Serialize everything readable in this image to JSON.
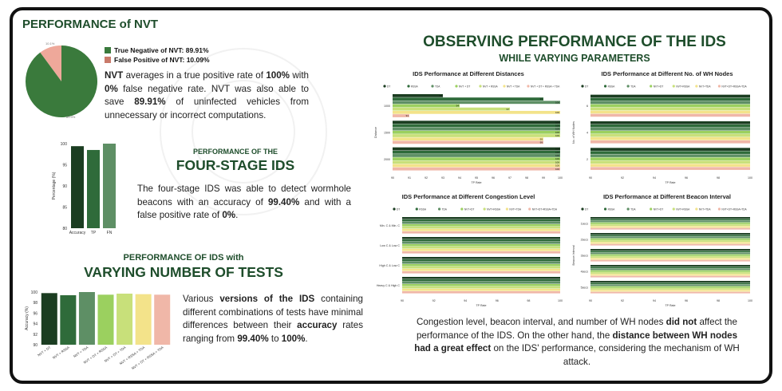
{
  "colors": {
    "dark_green": "#1e4d2b",
    "nvt": "#3a7a3c",
    "fp": "#eea89a",
    "series": [
      "#1b3d21",
      "#2f6b3a",
      "#5e8f65",
      "#9bd05f",
      "#c8e07a",
      "#f3e38a",
      "#f0b7a8"
    ]
  },
  "nvt": {
    "title": "PERFORMANCE of NVT",
    "legend": [
      {
        "label": "True  Negative of NVT:  89.91%",
        "color": "#3a7a3c"
      },
      {
        "label": "False Positive  of NVT:  10.09%",
        "color": "#c97a6a"
      }
    ],
    "pie_labels": {
      "small": "10.1%",
      "large": "89.9%"
    },
    "para": [
      {
        "t": "NVT",
        "b": true
      },
      {
        "t": " averages in a true positive rate of "
      },
      {
        "t": "100%",
        "b": true
      },
      {
        "t": " with "
      },
      {
        "t": "0%",
        "b": true
      },
      {
        "t": " false negative rate.  NVT was also able to save "
      },
      {
        "t": "89.91%",
        "b": true
      },
      {
        "t": " of uninfected vehicles from unnecessary or incorrect computations."
      }
    ]
  },
  "four_stage": {
    "subtitle": "PERFORMANCE OF THE",
    "title": "FOUR-STAGE IDS",
    "para": [
      {
        "t": "The four-stage IDS was able to detect wormhole beacons with an accuracy of "
      },
      {
        "t": "99.40%",
        "b": true
      },
      {
        "t": " and with a false positive rate of  "
      },
      {
        "t": "0%",
        "b": true
      },
      {
        "t": "."
      }
    ]
  },
  "tests": {
    "subtitle": "PERFORMANCE OF IDS with",
    "title": "VARYING NUMBER OF TESTS",
    "para": [
      {
        "t": "Various "
      },
      {
        "t": "versions of the IDS",
        "b": true
      },
      {
        "t": " containing different combinations of tests have minimal differences between their "
      },
      {
        "t": "accuracy",
        "b": true
      },
      {
        "t": " rates ranging from "
      },
      {
        "t": "99.40%",
        "b": true
      },
      {
        "t": " to "
      },
      {
        "t": "100%",
        "b": true
      },
      {
        "t": "."
      }
    ]
  },
  "right": {
    "title": "OBSERVING PERFORMANCE OF THE IDS",
    "subtitle": "WHILE VARYING PARAMETERS",
    "para": [
      {
        "t": "Congestion level, beacon interval, and number of WH nodes "
      },
      {
        "t": "did not",
        "b": true
      },
      {
        "t": " affect the performance of the IDS. On the other hand, the "
      },
      {
        "t": "distance between WH nodes had a great effect",
        "b": true
      },
      {
        "t": " on the IDS' performance, considering the mechanism of  WH attack."
      }
    ]
  },
  "chart_data": [
    {
      "type": "pie",
      "categories": [
        "True Negative of NVT",
        "False Positive of NVT"
      ],
      "values": [
        89.91,
        10.09
      ]
    },
    {
      "type": "bar",
      "categories": [
        "Accuracy",
        "TP",
        "FN"
      ],
      "values": [
        99.4,
        98.5,
        100
      ],
      "ylabel": "Percentage (%)",
      "ylim": [
        80,
        100
      ],
      "yticks": [
        "80",
        "85",
        "90",
        "95",
        "100"
      ]
    },
    {
      "type": "bar",
      "categories": [
        "NVT + DT",
        "NVT + RSSA",
        "NVT + TDA",
        "NVT + DT + RSSA",
        "NVT + DT + TDA",
        "NVT + RSSA + TDA",
        "NVT + DT + RSSA + TDA"
      ],
      "values": [
        99.8,
        99.4,
        100,
        99.5,
        99.7,
        99.6,
        99.5
      ],
      "ylabel": "Accuracy (%)",
      "ylim": [
        90,
        100
      ],
      "yticks": [
        "90",
        "92",
        "94",
        "96",
        "98",
        "100"
      ]
    },
    {
      "type": "bar",
      "title": "IDS Performance at Different Distances",
      "legend": [
        "DT",
        "RSSA",
        "TDA",
        "NVT + DT",
        "NVT + RSSA",
        "NVT + TDA",
        "NVT + DT + RSSA + TDA"
      ],
      "categories": [
        "1000",
        "1500",
        "2000"
      ],
      "ylabel": "Distance",
      "xlabel": "TP Rate",
      "xlim": [
        90,
        100
      ],
      "xticks": [
        "90",
        "91",
        "92",
        "93",
        "94",
        "95",
        "96",
        "97",
        "98",
        "99",
        "100"
      ],
      "series": [
        {
          "name": "DT",
          "values": [
            93,
            100,
            100
          ]
        },
        {
          "name": "RSSA",
          "values": [
            99,
            100,
            100
          ]
        },
        {
          "name": "TDA",
          "values": [
            100,
            100,
            100
          ]
        },
        {
          "name": "NVT + DT",
          "values": [
            94,
            100,
            100
          ]
        },
        {
          "name": "NVT + RSSA",
          "values": [
            97,
            100,
            100
          ]
        },
        {
          "name": "NVT + TDA",
          "values": [
            100,
            99,
            100
          ]
        },
        {
          "name": "NVT + DT + RSSA + TDA",
          "values": [
            91,
            99,
            100
          ]
        }
      ],
      "bar_labels": [
        [
          "93",
          "99",
          "100",
          "94",
          "97",
          "100",
          "91"
        ],
        [
          "100",
          "100",
          "100",
          "100",
          "100",
          "99",
          "99"
        ],
        [
          "100",
          "100",
          "100",
          "100",
          "100",
          "100",
          "100"
        ]
      ]
    },
    {
      "type": "bar",
      "title": "IDS Performance at Different No. of WH Nodes",
      "legend": [
        "DT",
        "RSSA",
        "TDA",
        "NVT+DT",
        "NVT+RSSA",
        "NVT+TDA",
        "NVT+DT+RSSA+TDA"
      ],
      "categories": [
        "6",
        "4",
        "2"
      ],
      "ylabel": "No. of WH Nodes",
      "xlabel": "TP Rate",
      "xlim": [
        90,
        100
      ],
      "xticks": [
        "90",
        "92",
        "94",
        "96",
        "98",
        "100"
      ],
      "series": [
        {
          "name": "DT",
          "values": [
            100,
            100,
            100
          ]
        },
        {
          "name": "RSSA",
          "values": [
            100,
            100,
            100
          ]
        },
        {
          "name": "TDA",
          "values": [
            100,
            100,
            100
          ]
        },
        {
          "name": "NVT+DT",
          "values": [
            100,
            100,
            100
          ]
        },
        {
          "name": "NVT+RSSA",
          "values": [
            100,
            100,
            100
          ]
        },
        {
          "name": "NVT+TDA",
          "values": [
            100,
            100,
            100
          ]
        },
        {
          "name": "NVT+DT+RSSA+TDA",
          "values": [
            100,
            100,
            100
          ]
        }
      ]
    },
    {
      "type": "bar",
      "title": "IDS Performance at Different Congestion Level",
      "legend": [
        "DT",
        "RSSA",
        "TDA",
        "NVT+DT",
        "NVT+RSSA",
        "NVT+TDA",
        "NVT+DT+RSSA+TDA"
      ],
      "categories": [
        "Min. C & Min. C",
        "Low C & Low C",
        "High C & Low C",
        "Heavy C & High C"
      ],
      "xlabel": "TP Rate",
      "xlim": [
        90,
        100
      ],
      "xticks": [
        "90",
        "92",
        "94",
        "96",
        "98",
        "100"
      ],
      "series": [
        {
          "name": "DT",
          "values": [
            100,
            100,
            100,
            100
          ]
        },
        {
          "name": "RSSA",
          "values": [
            100,
            100,
            100,
            100
          ]
        },
        {
          "name": "TDA",
          "values": [
            100,
            100,
            100,
            100
          ]
        },
        {
          "name": "NVT+DT",
          "values": [
            100,
            100,
            100,
            100
          ]
        },
        {
          "name": "NVT+RSSA",
          "values": [
            100,
            100,
            100,
            100
          ]
        },
        {
          "name": "NVT+TDA",
          "values": [
            100,
            100,
            100,
            100
          ]
        },
        {
          "name": "NVT+DT+RSSA+TDA",
          "values": [
            100,
            100,
            100,
            100
          ]
        }
      ]
    },
    {
      "type": "bar",
      "title": "IDS Performance at Different Beacon Interval",
      "legend": [
        "DT",
        "RSSA",
        "TDA",
        "NVT+DT",
        "NVT+RSSA",
        "NVT+TDA",
        "NVT+DT+RSSA+TDA"
      ],
      "categories": [
        "1secs",
        "2secs",
        "3secs",
        "4secs",
        "5secs"
      ],
      "ylabel": "Beacon Interval",
      "xlabel": "TP Rate",
      "xlim": [
        90,
        100
      ],
      "xticks": [
        "90",
        "92",
        "94",
        "96",
        "98",
        "100"
      ],
      "series": [
        {
          "name": "DT",
          "values": [
            100,
            100,
            100,
            100,
            100
          ]
        },
        {
          "name": "RSSA",
          "values": [
            100,
            100,
            100,
            100,
            100
          ]
        },
        {
          "name": "TDA",
          "values": [
            100,
            100,
            100,
            100,
            100
          ]
        },
        {
          "name": "NVT+DT",
          "values": [
            100,
            100,
            100,
            100,
            100
          ]
        },
        {
          "name": "NVT+RSSA",
          "values": [
            100,
            100,
            100,
            100,
            100
          ]
        },
        {
          "name": "NVT+TDA",
          "values": [
            100,
            100,
            100,
            100,
            100
          ]
        },
        {
          "name": "NVT+DT+RSSA+TDA",
          "values": [
            100,
            100,
            100,
            100,
            100
          ]
        }
      ]
    }
  ]
}
